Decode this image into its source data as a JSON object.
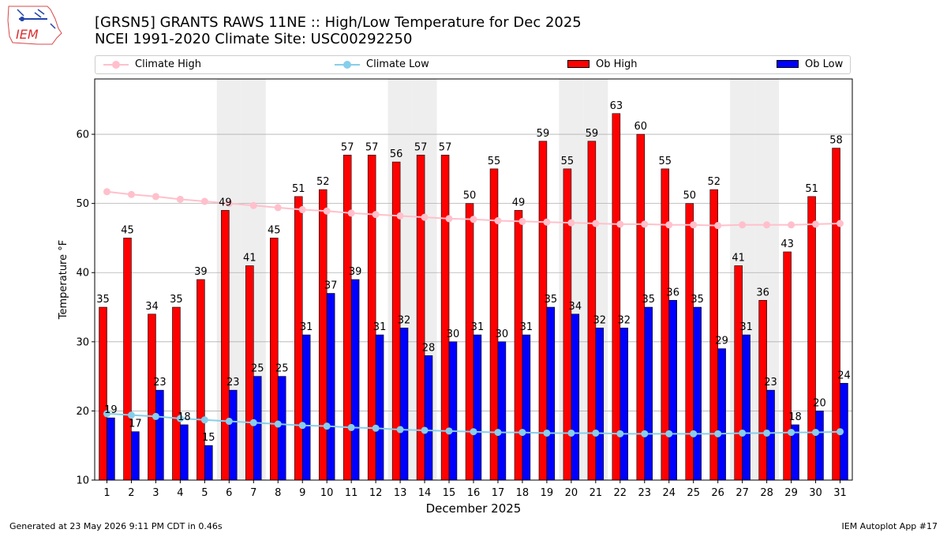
{
  "header": {
    "title_line1": "[GRSN5] GRANTS RAWS 11NE :: High/Low Temperature for Dec 2025",
    "title_line2": "NCEI 1991-2020 Climate Site: USC00292250"
  },
  "logo": {
    "text": "IEM"
  },
  "legend": {
    "items": [
      {
        "label": "Climate High",
        "kind": "line",
        "color": "#ffc0cb"
      },
      {
        "label": "Climate Low",
        "kind": "line",
        "color": "#87ceeb"
      },
      {
        "label": "Ob High",
        "kind": "bar",
        "color": "#ff0000"
      },
      {
        "label": "Ob Low",
        "kind": "bar",
        "color": "#0000ff"
      }
    ],
    "placement": "top, above plot"
  },
  "footer": {
    "left": "Generated at 23 May 2026 9:11 PM CDT in 0.46s",
    "right": "IEM Autoplot App #17"
  },
  "chart_data": {
    "type": "bar",
    "xlabel": "December 2025",
    "ylabel": "Temperature °F",
    "ylim": [
      10,
      68
    ],
    "yticks": [
      10,
      20,
      30,
      40,
      50,
      60
    ],
    "grid": "horizontal",
    "weekend_shading_days": [
      6,
      7,
      13,
      14,
      20,
      21,
      27,
      28
    ],
    "categories": [
      "1",
      "2",
      "3",
      "4",
      "5",
      "6",
      "7",
      "8",
      "9",
      "10",
      "11",
      "12",
      "13",
      "14",
      "15",
      "16",
      "17",
      "18",
      "19",
      "20",
      "21",
      "22",
      "23",
      "24",
      "25",
      "26",
      "27",
      "28",
      "29",
      "30",
      "31"
    ],
    "series": [
      {
        "name": "Ob High",
        "kind": "bar",
        "color": "#ff0000",
        "values": [
          35,
          45,
          34,
          35,
          39,
          49,
          41,
          45,
          51,
          52,
          57,
          57,
          56,
          57,
          57,
          50,
          55,
          49,
          59,
          55,
          59,
          63,
          60,
          55,
          50,
          52,
          41,
          36,
          43,
          51,
          58
        ]
      },
      {
        "name": "Ob Low",
        "kind": "bar",
        "color": "#0000ff",
        "values": [
          19,
          17,
          23,
          18,
          15,
          23,
          25,
          25,
          31,
          37,
          39,
          31,
          32,
          28,
          30,
          31,
          30,
          31,
          35,
          34,
          32,
          32,
          35,
          36,
          35,
          29,
          31,
          23,
          18,
          20,
          24
        ]
      },
      {
        "name": "Climate High",
        "kind": "line",
        "color": "#ffc0cb",
        "values": [
          51.7,
          51.3,
          51.0,
          50.6,
          50.3,
          50.0,
          49.7,
          49.4,
          49.1,
          48.9,
          48.6,
          48.4,
          48.2,
          48.0,
          47.8,
          47.7,
          47.5,
          47.4,
          47.3,
          47.2,
          47.1,
          47.0,
          47.0,
          46.9,
          46.9,
          46.8,
          46.9,
          46.9,
          46.9,
          47.0,
          47.1
        ]
      },
      {
        "name": "Climate Low",
        "kind": "line",
        "color": "#87ceeb",
        "values": [
          19.6,
          19.4,
          19.2,
          18.9,
          18.7,
          18.5,
          18.3,
          18.1,
          17.9,
          17.8,
          17.6,
          17.5,
          17.3,
          17.2,
          17.1,
          17.0,
          16.9,
          16.9,
          16.8,
          16.8,
          16.8,
          16.7,
          16.7,
          16.7,
          16.7,
          16.7,
          16.8,
          16.8,
          16.9,
          16.9,
          17.0
        ]
      }
    ]
  }
}
